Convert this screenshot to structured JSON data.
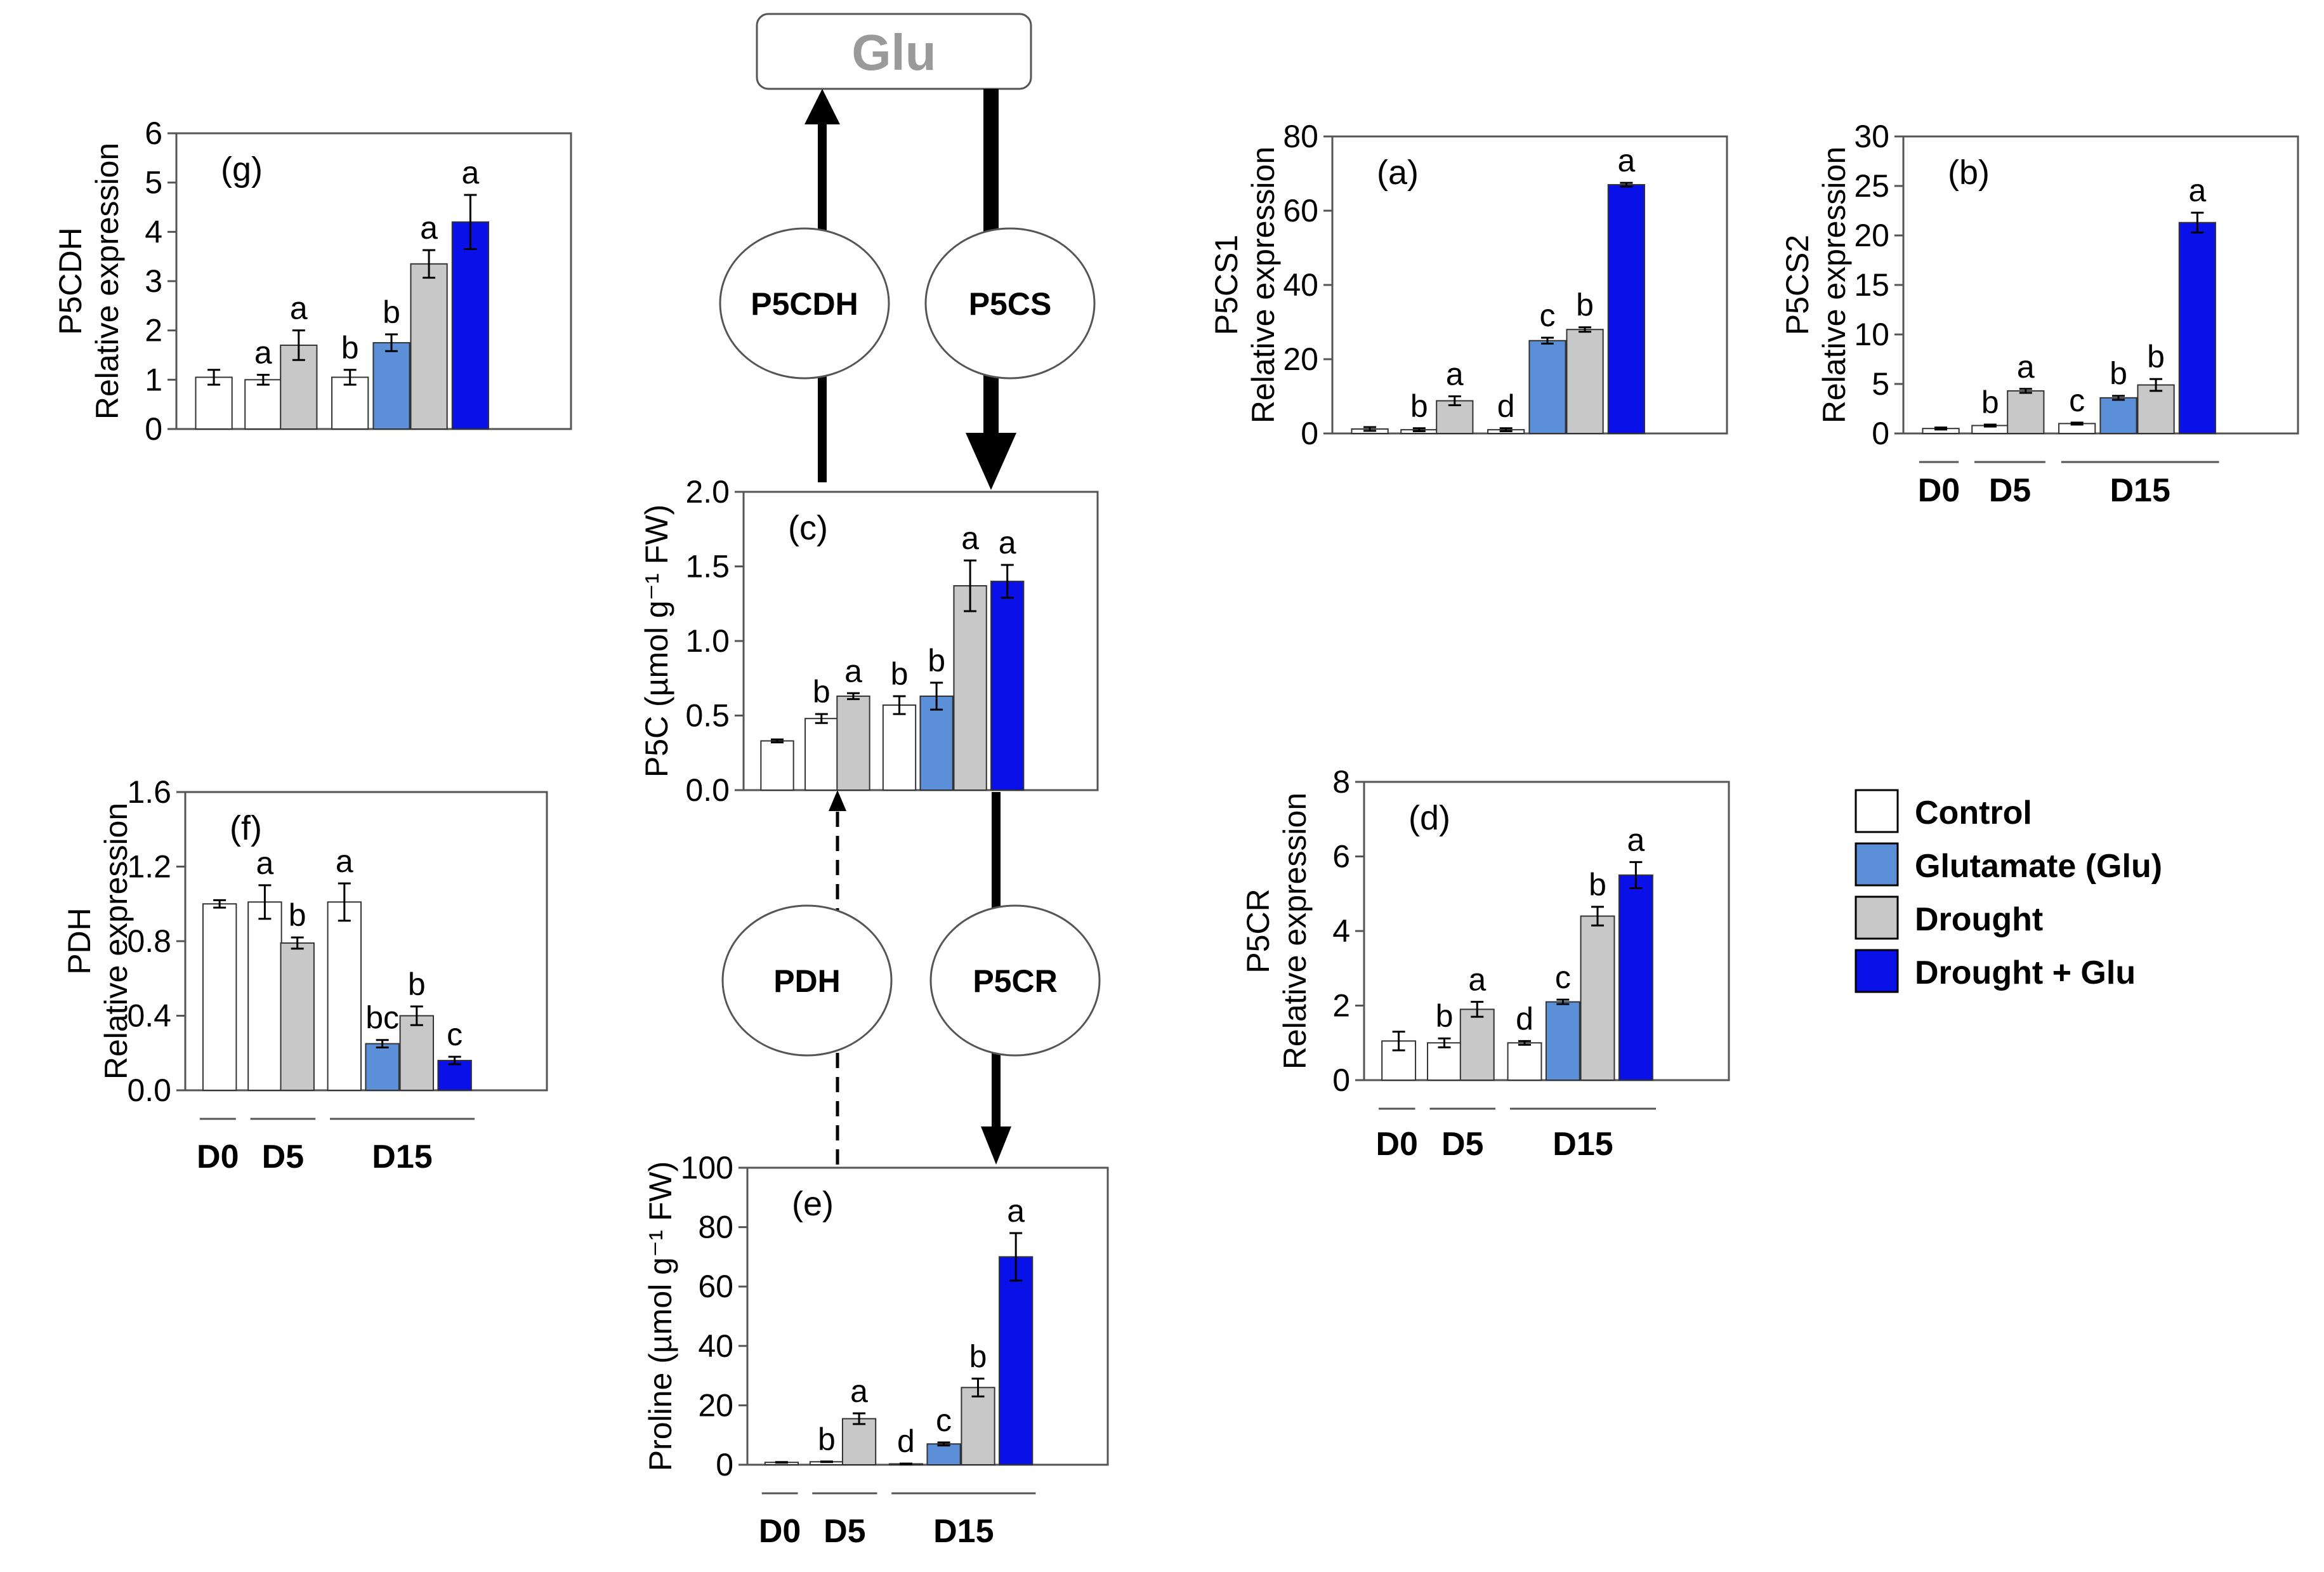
{
  "substrate_label": "Glu",
  "enzymes": [
    {
      "id": "p5cdh",
      "label": "P5CDH"
    },
    {
      "id": "p5cs",
      "label": "P5CS"
    },
    {
      "id": "pdh",
      "label": "PDH"
    },
    {
      "id": "p5cr",
      "label": "P5CR"
    }
  ],
  "groups": [
    "D0",
    "D5",
    "D15"
  ],
  "legend": [
    {
      "label": "Control",
      "color": "#ffffff"
    },
    {
      "label": "Glutamate (Glu)",
      "color": "#5b8fd8"
    },
    {
      "label": "Drought",
      "color": "#c8c8c8"
    },
    {
      "label": "Drought + Glu",
      "color": "#0a10e8"
    }
  ],
  "chart_data": [
    {
      "id": "g",
      "type": "bar",
      "panel_label": "(g)",
      "ylabel_top": "P5CDH",
      "ylabel": "Relative expression",
      "ylim": [
        0,
        6
      ],
      "yticks": [
        "0",
        "1",
        "2",
        "3",
        "4",
        "5",
        "6"
      ],
      "show_groups": false,
      "bars": [
        {
          "value": 1.05,
          "err": 0.15,
          "series": 0,
          "sig": ""
        },
        {
          "value": 1.0,
          "err": 0.1,
          "series": 0,
          "sig": "a"
        },
        {
          "value": 1.7,
          "err": 0.3,
          "series": 2,
          "sig": "a"
        },
        {
          "value": 1.05,
          "err": 0.15,
          "series": 0,
          "sig": "b"
        },
        {
          "value": 1.75,
          "err": 0.17,
          "series": 1,
          "sig": "b"
        },
        {
          "value": 3.35,
          "err": 0.28,
          "series": 2,
          "sig": "a"
        },
        {
          "value": 4.2,
          "err": 0.55,
          "series": 3,
          "sig": "a"
        }
      ]
    },
    {
      "id": "a",
      "type": "bar",
      "panel_label": "(a)",
      "ylabel_top": "P5CS1",
      "ylabel": "Relative expression",
      "ylim": [
        0,
        80
      ],
      "yticks": [
        "0",
        "20",
        "40",
        "60",
        "80"
      ],
      "show_groups": false,
      "bars": [
        {
          "value": 1.2,
          "err": 0.5,
          "series": 0,
          "sig": ""
        },
        {
          "value": 1.0,
          "err": 0.4,
          "series": 0,
          "sig": "b"
        },
        {
          "value": 8.8,
          "err": 1.2,
          "series": 2,
          "sig": "a"
        },
        {
          "value": 1.0,
          "err": 0.4,
          "series": 0,
          "sig": "d"
        },
        {
          "value": 25.0,
          "err": 0.8,
          "series": 1,
          "sig": "c"
        },
        {
          "value": 28.0,
          "err": 0.6,
          "series": 2,
          "sig": "b"
        },
        {
          "value": 67.0,
          "err": 0.5,
          "series": 3,
          "sig": "a"
        }
      ]
    },
    {
      "id": "b",
      "type": "bar",
      "panel_label": "(b)",
      "ylabel_top": "P5CS2",
      "ylabel": "Relative expression",
      "ylim": [
        0,
        30
      ],
      "yticks": [
        "0",
        "5",
        "10",
        "15",
        "20",
        "25",
        "30"
      ],
      "show_groups": true,
      "bars": [
        {
          "value": 0.5,
          "err": 0.1,
          "series": 0,
          "sig": ""
        },
        {
          "value": 0.8,
          "err": 0.1,
          "series": 0,
          "sig": "b"
        },
        {
          "value": 4.3,
          "err": 0.2,
          "series": 2,
          "sig": "a"
        },
        {
          "value": 1.0,
          "err": 0.1,
          "series": 0,
          "sig": "c"
        },
        {
          "value": 3.6,
          "err": 0.2,
          "series": 1,
          "sig": "b"
        },
        {
          "value": 4.9,
          "err": 0.6,
          "series": 2,
          "sig": "b"
        },
        {
          "value": 21.3,
          "err": 1.0,
          "series": 3,
          "sig": "a"
        }
      ]
    },
    {
      "id": "c",
      "type": "bar",
      "panel_label": "(c)",
      "ylabel": "P5C (µmol g⁻¹ FW)",
      "ylim": [
        0,
        2
      ],
      "yticks": [
        "0.0",
        "0.5",
        "1.0",
        "1.5",
        "2.0"
      ],
      "show_groups": false,
      "bars": [
        {
          "value": 0.33,
          "err": 0.01,
          "series": 0,
          "sig": ""
        },
        {
          "value": 0.48,
          "err": 0.03,
          "series": 0,
          "sig": "b"
        },
        {
          "value": 0.63,
          "err": 0.02,
          "series": 2,
          "sig": "a"
        },
        {
          "value": 0.57,
          "err": 0.06,
          "series": 0,
          "sig": "b"
        },
        {
          "value": 0.63,
          "err": 0.09,
          "series": 1,
          "sig": "b"
        },
        {
          "value": 1.37,
          "err": 0.17,
          "series": 2,
          "sig": "a"
        },
        {
          "value": 1.4,
          "err": 0.11,
          "series": 3,
          "sig": "a"
        }
      ]
    },
    {
      "id": "f",
      "type": "bar",
      "panel_label": "(f)",
      "ylabel_top": "PDH",
      "ylabel": "Relative expression",
      "ylim": [
        0,
        1.6
      ],
      "yticks": [
        "0.0",
        "0.4",
        "0.8",
        "1.2",
        "1.6"
      ],
      "show_groups": true,
      "bars": [
        {
          "value": 1.0,
          "err": 0.02,
          "series": 0,
          "sig": ""
        },
        {
          "value": 1.01,
          "err": 0.09,
          "series": 0,
          "sig": "a"
        },
        {
          "value": 0.79,
          "err": 0.03,
          "series": 2,
          "sig": "b"
        },
        {
          "value": 1.01,
          "err": 0.1,
          "series": 0,
          "sig": "a"
        },
        {
          "value": 0.25,
          "err": 0.02,
          "series": 1,
          "sig": "bc"
        },
        {
          "value": 0.4,
          "err": 0.05,
          "series": 2,
          "sig": "b"
        },
        {
          "value": 0.16,
          "err": 0.02,
          "series": 3,
          "sig": "c"
        }
      ]
    },
    {
      "id": "d",
      "type": "bar",
      "panel_label": "(d)",
      "ylabel_top": "P5CR",
      "ylabel": "Relative expression",
      "ylim": [
        0,
        8
      ],
      "yticks": [
        "0",
        "2",
        "4",
        "6",
        "8"
      ],
      "show_groups": true,
      "bars": [
        {
          "value": 1.05,
          "err": 0.25,
          "series": 0,
          "sig": ""
        },
        {
          "value": 1.0,
          "err": 0.12,
          "series": 0,
          "sig": "b"
        },
        {
          "value": 1.9,
          "err": 0.2,
          "series": 2,
          "sig": "a"
        },
        {
          "value": 1.0,
          "err": 0.05,
          "series": 0,
          "sig": "d"
        },
        {
          "value": 2.1,
          "err": 0.06,
          "series": 1,
          "sig": "c"
        },
        {
          "value": 4.4,
          "err": 0.25,
          "series": 2,
          "sig": "b"
        },
        {
          "value": 5.5,
          "err": 0.35,
          "series": 3,
          "sig": "a"
        }
      ]
    },
    {
      "id": "e",
      "type": "bar",
      "panel_label": "(e)",
      "ylabel": "Proline (µmol g⁻¹ FW)",
      "ylim": [
        0,
        100
      ],
      "yticks": [
        "0",
        "20",
        "40",
        "60",
        "80",
        "100"
      ],
      "show_groups": true,
      "bars": [
        {
          "value": 0.8,
          "err": 0.1,
          "series": 0,
          "sig": ""
        },
        {
          "value": 1.0,
          "err": 0.1,
          "series": 0,
          "sig": "b"
        },
        {
          "value": 15.5,
          "err": 1.8,
          "series": 2,
          "sig": "a"
        },
        {
          "value": 0.3,
          "err": 0.1,
          "series": 0,
          "sig": "d"
        },
        {
          "value": 7.0,
          "err": 0.5,
          "series": 1,
          "sig": "c"
        },
        {
          "value": 26.0,
          "err": 3.0,
          "series": 2,
          "sig": "b"
        },
        {
          "value": 70.0,
          "err": 8.0,
          "series": 3,
          "sig": "a"
        }
      ]
    }
  ]
}
